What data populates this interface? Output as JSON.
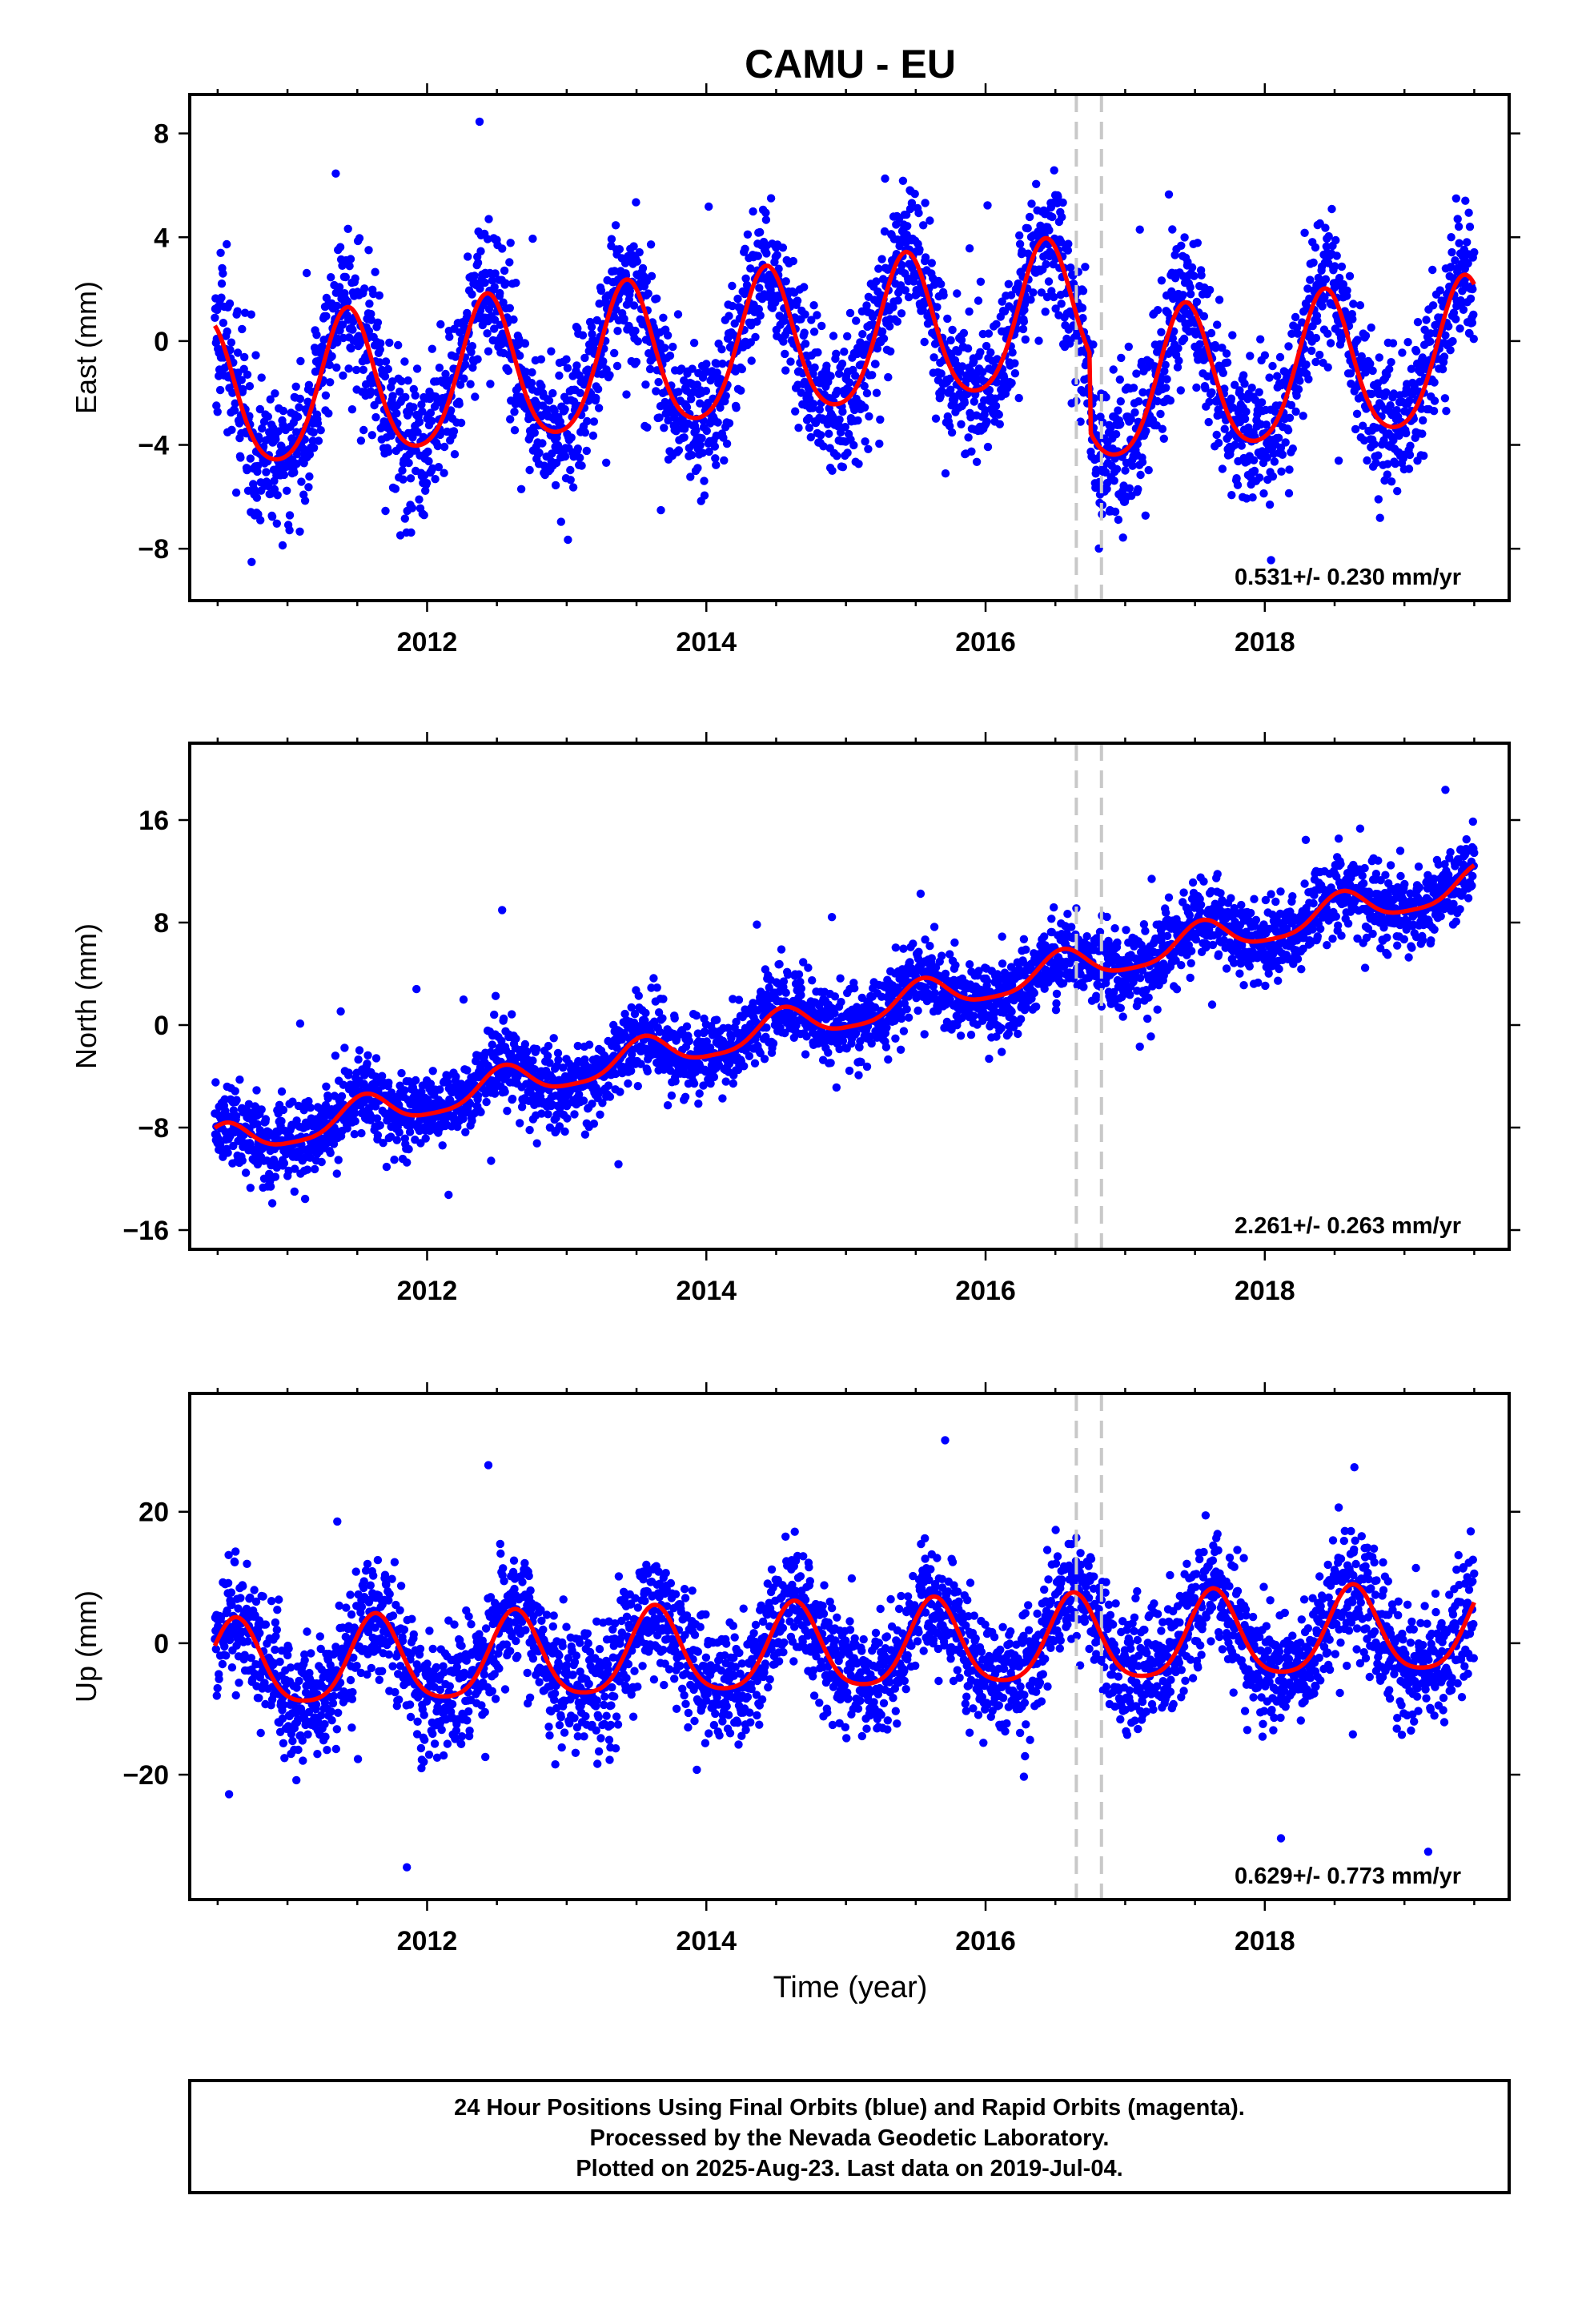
{
  "title": "CAMU - EU",
  "xlabel": "Time (year)",
  "footer": {
    "line1": "24 Hour Positions Using Final Orbits (blue) and Rapid Orbits (magenta).",
    "line2": "Processed by the Nevada Geodetic Laboratory.",
    "line3": "Plotted on 2025-Aug-23. Last data on 2019-Jul-04."
  },
  "colors": {
    "points": "#0000ff",
    "model": "#ff0000",
    "breaks": "#c8c8c8",
    "frame": "#000000"
  },
  "chart_data": [
    {
      "type": "scatter",
      "ylabel": "East (mm)",
      "rate_label": "0.531+/- 0.230 mm/yr",
      "xlim": [
        2010.3,
        2019.75
      ],
      "ylim": [
        -10,
        9.5
      ],
      "xticks": [
        2012,
        2014,
        2016,
        2018
      ],
      "yticks": [
        -8,
        -4,
        0,
        4,
        8
      ],
      "breaks": [
        2016.65,
        2016.83
      ],
      "trend": {
        "start": 2010.48,
        "end": 2019.5,
        "rate": 0.531,
        "offset": 0.0,
        "annual_amp": 2.8,
        "annual_phase_peak": 0.43,
        "semi_amp": 0.4,
        "jump_at": 2016.75,
        "jump": -3.0
      },
      "scatter_sigma": 1.4
    },
    {
      "type": "scatter",
      "ylabel": "North (mm)",
      "rate_label": "2.261+/- 0.263 mm/yr",
      "xlim": [
        2010.3,
        2019.75
      ],
      "ylim": [
        -17.5,
        22
      ],
      "xticks": [
        2012,
        2014,
        2016,
        2018
      ],
      "yticks": [
        -16,
        -8,
        0,
        8,
        16
      ],
      "breaks": [
        2016.65,
        2016.83
      ],
      "trend": {
        "start": 2010.48,
        "end": 2019.5,
        "rate": 2.261,
        "offset": 0.8,
        "annual_amp": 1.3,
        "annual_phase_peak": 0.55,
        "semi_amp": 0.3,
        "jump_at": 2016.75,
        "jump": 0.0
      },
      "scatter_sigma": 1.5
    },
    {
      "type": "scatter",
      "ylabel": "Up (mm)",
      "rate_label": "0.629+/- 0.773 mm/yr",
      "xlim": [
        2010.3,
        2019.75
      ],
      "ylim": [
        -39,
        38
      ],
      "xticks": [
        2012,
        2014,
        2016,
        2018
      ],
      "yticks": [
        -20,
        0,
        20
      ],
      "breaks": [
        2016.65,
        2016.83
      ],
      "trend": {
        "start": 2010.48,
        "end": 2019.5,
        "rate": 0.629,
        "offset": -1.0,
        "annual_amp": 6.5,
        "annual_phase_peak": 0.63,
        "semi_amp": 1.2,
        "jump_at": 2016.75,
        "jump": 0.0
      },
      "scatter_sigma": 4.5
    }
  ]
}
